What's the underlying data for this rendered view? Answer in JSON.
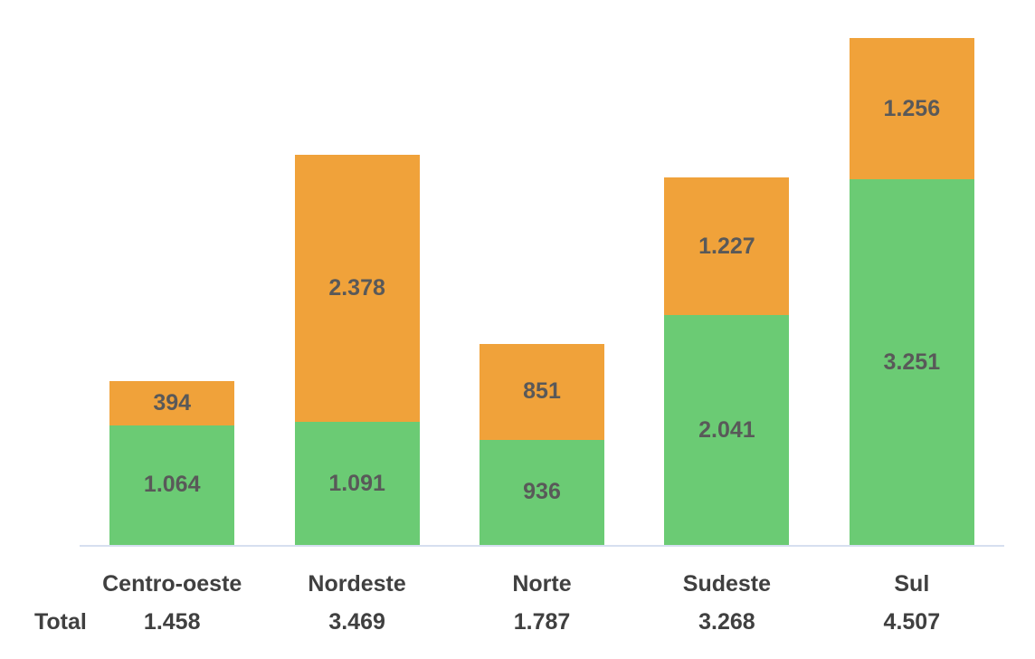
{
  "chart_data": {
    "type": "bar",
    "stacked": true,
    "title": "",
    "xlabel": "",
    "ylabel": "",
    "grid": false,
    "legend": "none",
    "ylim": [
      0,
      4507
    ],
    "axis_line_color": "#d6dff0",
    "segment_label_color": "#595959",
    "category_label_color": "#404040",
    "categories": [
      "Centro-oeste",
      "Nordeste",
      "Norte",
      "Sudeste",
      "Sul"
    ],
    "series": [
      {
        "name": "green-series",
        "color": "#6BCB74",
        "values": [
          1064,
          1091,
          936,
          2041,
          3251
        ],
        "labels": [
          "1.064",
          "1.091",
          "936",
          "2.041",
          "3.251"
        ]
      },
      {
        "name": "orange-series",
        "color": "#F0A23A",
        "values": [
          394,
          2378,
          851,
          1227,
          1256
        ],
        "labels": [
          "394",
          "2.378",
          "851",
          "1.227",
          "1.256"
        ]
      }
    ],
    "totals": {
      "label": "Total",
      "values": [
        "1.458",
        "3.469",
        "1.787",
        "3.268",
        "4.507"
      ]
    }
  }
}
